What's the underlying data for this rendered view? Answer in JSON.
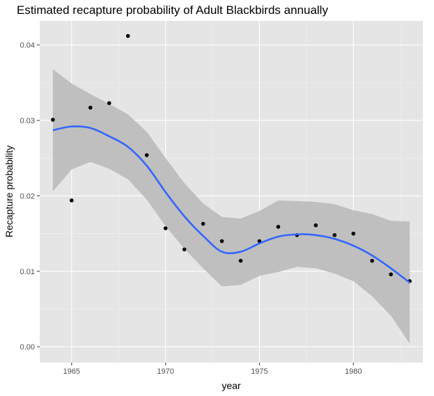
{
  "chart_data": {
    "type": "scatter",
    "title": "Estimated recapture probability of Adult Blackbirds annually",
    "xlabel": "year",
    "ylabel": "Recapture probability",
    "xlim": [
      1963.3,
      1983.7
    ],
    "ylim": [
      -0.0021,
      0.0432
    ],
    "x_ticks": [
      1965,
      1970,
      1975,
      1980
    ],
    "x_tick_labels": [
      "1965",
      "1970",
      "1975",
      "1980"
    ],
    "y_ticks": [
      0.0,
      0.01,
      0.02,
      0.03,
      0.04
    ],
    "y_tick_labels": [
      "0.00",
      "0.01",
      "0.02",
      "0.03",
      "0.04"
    ],
    "grid": true,
    "panel_background": "#e5e5e5",
    "point_color": "#000000",
    "smooth_color": "#3366ff",
    "ribbon_color": "#bdbdbd",
    "points": [
      {
        "x": 1964,
        "y": 0.0301
      },
      {
        "x": 1965,
        "y": 0.0194
      },
      {
        "x": 1966,
        "y": 0.0317
      },
      {
        "x": 1967,
        "y": 0.0323
      },
      {
        "x": 1968,
        "y": 0.0412
      },
      {
        "x": 1969,
        "y": 0.0254
      },
      {
        "x": 1970,
        "y": 0.0157
      },
      {
        "x": 1971,
        "y": 0.0129
      },
      {
        "x": 1972,
        "y": 0.0163
      },
      {
        "x": 1973,
        "y": 0.014
      },
      {
        "x": 1974,
        "y": 0.0114
      },
      {
        "x": 1975,
        "y": 0.014
      },
      {
        "x": 1976,
        "y": 0.0159
      },
      {
        "x": 1977,
        "y": 0.0148
      },
      {
        "x": 1978,
        "y": 0.0161
      },
      {
        "x": 1979,
        "y": 0.0148
      },
      {
        "x": 1980,
        "y": 0.015
      },
      {
        "x": 1981,
        "y": 0.0114
      },
      {
        "x": 1982,
        "y": 0.0096
      },
      {
        "x": 1983,
        "y": 0.0087
      }
    ],
    "smooth": {
      "x": [
        1964,
        1965,
        1966,
        1967,
        1968,
        1969,
        1970,
        1971,
        1972,
        1973,
        1974,
        1975,
        1976,
        1977,
        1978,
        1979,
        1980,
        1981,
        1982,
        1983
      ],
      "y": [
        0.0287,
        0.0292,
        0.029,
        0.0279,
        0.0265,
        0.024,
        0.0205,
        0.0173,
        0.0147,
        0.0126,
        0.0126,
        0.0137,
        0.0146,
        0.0149,
        0.0148,
        0.0143,
        0.0134,
        0.0121,
        0.0104,
        0.0085
      ],
      "lower": [
        0.0206,
        0.0235,
        0.0245,
        0.0236,
        0.0222,
        0.0195,
        0.016,
        0.013,
        0.0104,
        0.008,
        0.0082,
        0.0094,
        0.0099,
        0.0106,
        0.0104,
        0.0097,
        0.0087,
        0.0067,
        0.0041,
        0.0004
      ],
      "upper": [
        0.0368,
        0.0349,
        0.0335,
        0.0322,
        0.0308,
        0.0285,
        0.025,
        0.0217,
        0.019,
        0.0172,
        0.017,
        0.018,
        0.0194,
        0.0193,
        0.0192,
        0.0189,
        0.0181,
        0.0176,
        0.0167,
        0.0166
      ]
    }
  }
}
